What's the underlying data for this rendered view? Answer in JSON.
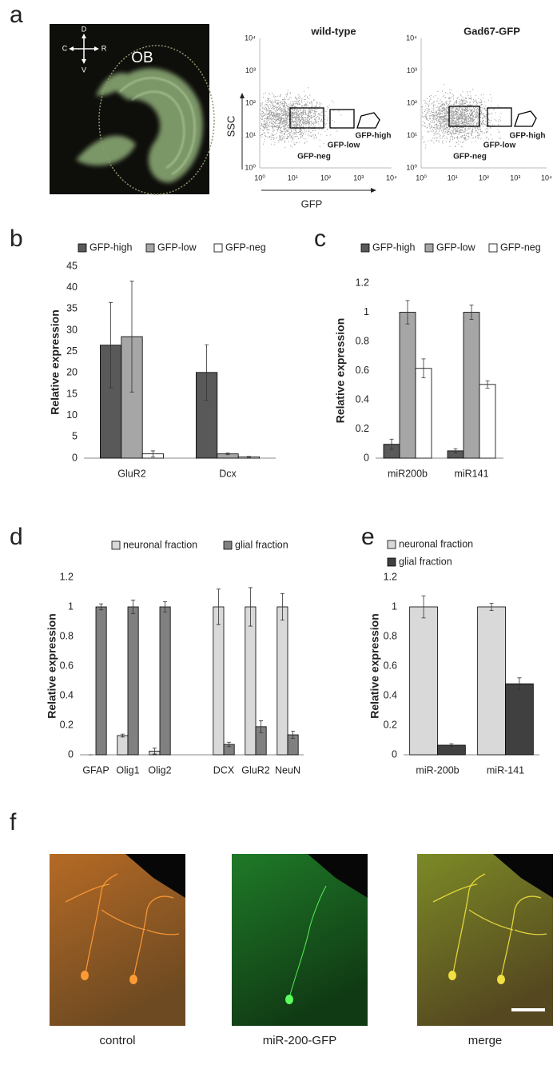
{
  "panel_labels": [
    "a",
    "b",
    "c",
    "d",
    "e",
    "f"
  ],
  "figure_a": {
    "orientation": {
      "dorsal": "D",
      "ventral": "V",
      "caudal": "C",
      "rostral": "R"
    },
    "region": "OB",
    "facs_plots": [
      {
        "title": "wild-type",
        "gates": [
          "GFP-neg",
          "GFP-low",
          "GFP-high"
        ]
      },
      {
        "title": "Gad67-GFP",
        "gates": [
          "GFP-neg",
          "GFP-low",
          "GFP-high"
        ]
      }
    ],
    "y_axis_label": "SSC",
    "x_axis_label": "GFP",
    "tick_labels": [
      "10⁰",
      "10¹",
      "10²",
      "10³",
      "10⁴"
    ]
  },
  "chart_data": [
    {
      "type": "bar",
      "ylabel": "Relative expression",
      "categories": [
        "GluR2",
        "Dcx"
      ],
      "series": [
        {
          "name": "GFP-high",
          "color": "#595959",
          "values": [
            26.5,
            20.1
          ],
          "errors": [
            10,
            6.5
          ]
        },
        {
          "name": "GFP-low",
          "color": "#a6a6a6",
          "values": [
            28.5,
            1.0
          ],
          "errors": [
            13,
            0.2
          ]
        },
        {
          "name": "GFP-neg",
          "color": "#ffffff",
          "values": [
            1.0,
            0.3
          ],
          "errors": [
            0.7,
            0.1
          ]
        }
      ],
      "ylim": [
        0,
        45
      ],
      "yticks": [
        0,
        5,
        10,
        15,
        20,
        25,
        30,
        35,
        40,
        45
      ],
      "legend": "top"
    },
    {
      "type": "bar",
      "ylabel": "Relative expression",
      "categories": [
        "miR200b",
        "miR141"
      ],
      "series": [
        {
          "name": "GFP-high",
          "color": "#595959",
          "values": [
            0.095,
            0.05
          ],
          "errors": [
            0.035,
            0.015
          ]
        },
        {
          "name": "GFP-low",
          "color": "#a6a6a6",
          "values": [
            1.0,
            1.0
          ],
          "errors": [
            0.08,
            0.05
          ]
        },
        {
          "name": "GFP-neg",
          "color": "#ffffff",
          "values": [
            0.615,
            0.505
          ],
          "errors": [
            0.065,
            0.025
          ]
        }
      ],
      "ylim": [
        0,
        1.2
      ],
      "yticks": [
        0,
        0.2,
        0.4,
        0.6,
        0.8,
        1,
        1.2
      ],
      "legend": "top"
    },
    {
      "type": "bar",
      "ylabel": "Relative expression",
      "categories": [
        "GFAP",
        "Olig1",
        "Olig2",
        null,
        "DCX",
        "GluR2",
        "NeuN"
      ],
      "series": [
        {
          "name": "neuronal fraction",
          "color": "#d9d9d9",
          "values": [
            0,
            0.13,
            0.025,
            null,
            1,
            1,
            1
          ],
          "errors": [
            0,
            0.01,
            0.02,
            null,
            0.12,
            0.13,
            0.09
          ]
        },
        {
          "name": "glial fraction",
          "color": "#808080",
          "values": [
            1,
            1,
            1,
            null,
            0.07,
            0.19,
            0.135
          ],
          "errors": [
            0.02,
            0.045,
            0.035,
            null,
            0.015,
            0.04,
            0.025
          ]
        }
      ],
      "ylim": [
        0,
        1.2
      ],
      "yticks": [
        0,
        0.2,
        0.4,
        0.6,
        0.8,
        1,
        1.2
      ],
      "legend": "top"
    },
    {
      "type": "bar",
      "ylabel": "Relative expression",
      "categories": [
        "miR-200b",
        "miR-141"
      ],
      "series": [
        {
          "name": "neuronal fraction",
          "color": "#d9d9d9",
          "values": [
            1,
            1
          ],
          "errors": [
            0.075,
            0.025
          ]
        },
        {
          "name": "glial fraction",
          "color": "#404040",
          "values": [
            0.065,
            0.48
          ],
          "errors": [
            0.01,
            0.04
          ]
        }
      ],
      "ylim": [
        0,
        1.2
      ],
      "yticks": [
        0,
        0.2,
        0.4,
        0.6,
        0.8,
        1,
        1.2
      ],
      "legend": "top-left"
    }
  ],
  "figure_f": {
    "captions": [
      "control",
      "miR-200-GFP",
      "merge"
    ]
  }
}
